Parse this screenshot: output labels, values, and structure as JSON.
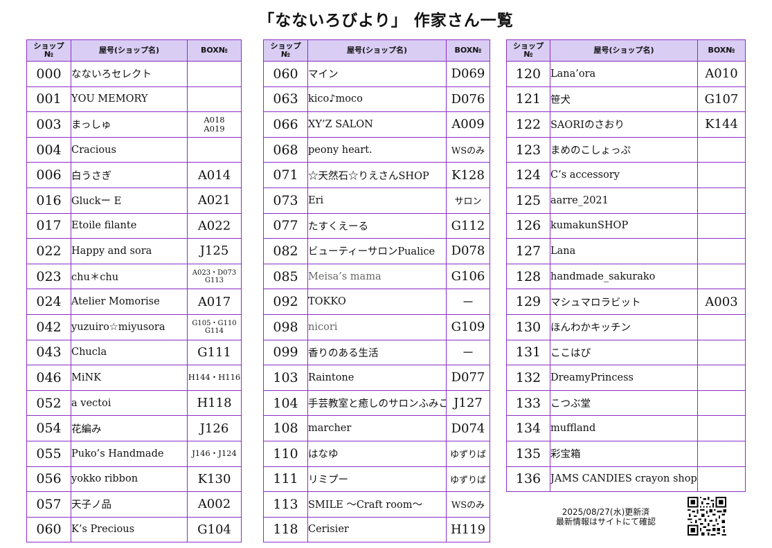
{
  "title": "「なないろびより」 作家さん一覧",
  "headers": {
    "no_line1": "ショップ",
    "no_line2": "№",
    "name": "屋号(ショップ名)",
    "box": "BOX№"
  },
  "tables": [
    {
      "rows": [
        {
          "no": "000",
          "name": "なないろセレクト",
          "box": ""
        },
        {
          "no": "001",
          "name": "YOU MEMORY",
          "box": ""
        },
        {
          "no": "003",
          "name": "まっしゅ",
          "box": "A018\nA019"
        },
        {
          "no": "004",
          "name": "Cracious",
          "box": ""
        },
        {
          "no": "006",
          "name": "白うさぎ",
          "box": "A014"
        },
        {
          "no": "016",
          "name": "Gluckー E",
          "box": "A021"
        },
        {
          "no": "017",
          "name": "Etoile filante",
          "box": "A022"
        },
        {
          "no": "022",
          "name": "Happy and sora",
          "box": "J125"
        },
        {
          "no": "023",
          "name": "chu＊chu",
          "box": "A023・D073\nG113"
        },
        {
          "no": "024",
          "name": "Atelier Momorise",
          "box": "A017"
        },
        {
          "no": "042",
          "name": "yuzuiro☆miyusora",
          "box": "G105・G110\nG114"
        },
        {
          "no": "043",
          "name": "Chucla",
          "box": "G111"
        },
        {
          "no": "046",
          "name": "MiNK",
          "box": "H144・H116"
        },
        {
          "no": "052",
          "name": "a vectoi",
          "box": "H118"
        },
        {
          "no": "054",
          "name": "花編み",
          "box": "J126"
        },
        {
          "no": "055",
          "name": "Puko’s Handmade",
          "box": "J146・J124"
        },
        {
          "no": "056",
          "name": "yokko ribbon",
          "box": "K130"
        },
        {
          "no": "057",
          "name": "天子ノ品",
          "box": "A002"
        },
        {
          "no": "060",
          "name": "K’s Precious",
          "box": "G104"
        }
      ]
    },
    {
      "rows": [
        {
          "no": "060",
          "name": "マイン",
          "box": "D069"
        },
        {
          "no": "063",
          "name": "kico♪moco",
          "box": "D076"
        },
        {
          "no": "066",
          "name": "XY’Z SALON",
          "box": "A009"
        },
        {
          "no": "068",
          "name": "peony heart.",
          "box": "WSのみ"
        },
        {
          "no": "071",
          "name": "☆天然石☆りえさんSHOP",
          "box": "K128"
        },
        {
          "no": "073",
          "name": "Eri",
          "box": "サロン"
        },
        {
          "no": "077",
          "name": "たすくえーる",
          "box": "G112"
        },
        {
          "no": "082",
          "name": "ビューティーサロンPualice",
          "box": "D078"
        },
        {
          "no": "085",
          "name": "Meisa’s mama",
          "box": "G106"
        },
        {
          "no": "092",
          "name": "TOKKO",
          "box": "－"
        },
        {
          "no": "098",
          "name": "nicori",
          "box": "G109"
        },
        {
          "no": "099",
          "name": "香りのある生活",
          "box": "－"
        },
        {
          "no": "103",
          "name": "Raintone",
          "box": "D077"
        },
        {
          "no": "104",
          "name": "手芸教室と癒しのサロンふみこ",
          "box": "J127"
        },
        {
          "no": "108",
          "name": "marcher",
          "box": "D074"
        },
        {
          "no": "110",
          "name": "はなゆ",
          "box": "ゆずりば"
        },
        {
          "no": "111",
          "name": "リミプー",
          "box": "ゆずりば"
        },
        {
          "no": "113",
          "name": "SMILE 〜Craft room〜",
          "box": "WSのみ"
        },
        {
          "no": "118",
          "name": "Cerisier",
          "box": "H119"
        }
      ]
    },
    {
      "rows": [
        {
          "no": "120",
          "name": "Lana’ora",
          "box": "A010"
        },
        {
          "no": "121",
          "name": "笹犬",
          "box": "G107"
        },
        {
          "no": "122",
          "name": "SAORIのさおり",
          "box": "K144"
        },
        {
          "no": "123",
          "name": "まめのこしょっぷ",
          "box": ""
        },
        {
          "no": "124",
          "name": "C’s accessory",
          "box": ""
        },
        {
          "no": "125",
          "name": "aarre_2021",
          "box": ""
        },
        {
          "no": "126",
          "name": "kumakunSHOP",
          "box": ""
        },
        {
          "no": "127",
          "name": "Lana",
          "box": ""
        },
        {
          "no": "128",
          "name": "handmade_sakurako",
          "box": ""
        },
        {
          "no": "129",
          "name": "マシュマロラビット",
          "box": "A003"
        },
        {
          "no": "130",
          "name": "ほんわかキッチン",
          "box": ""
        },
        {
          "no": "131",
          "name": "ここはぴ",
          "box": ""
        },
        {
          "no": "132",
          "name": "DreamyPrincess",
          "box": ""
        },
        {
          "no": "133",
          "name": "こつぶ堂",
          "box": ""
        },
        {
          "no": "134",
          "name": "muffland",
          "box": ""
        },
        {
          "no": "135",
          "name": "彩宝箱",
          "box": ""
        },
        {
          "no": "136",
          "name": "JAMS CANDIES crayon shop",
          "box": ""
        }
      ]
    }
  ],
  "update_line1": "2025/08/27(水)更新済",
  "update_line2": "最新情報はサイトにて確認"
}
